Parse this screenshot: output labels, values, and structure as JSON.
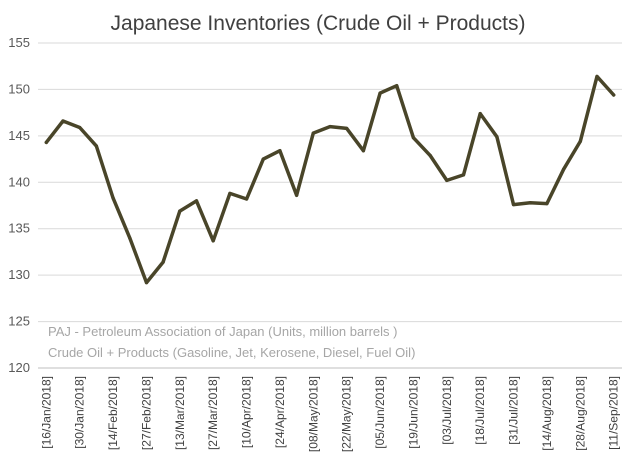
{
  "chart_data": {
    "type": "line",
    "title": "Japanese Inventories (Crude Oil + Products)",
    "xlabel": "",
    "ylabel": "",
    "ylim": [
      120,
      155
    ],
    "yticks": [
      120,
      125,
      130,
      135,
      140,
      145,
      150,
      155
    ],
    "grid": true,
    "legend": "none",
    "categories": [
      "2018-01-16",
      "2018-01-23",
      "2018-01-30",
      "2018-02-06",
      "2018-02-14",
      "2018-02-20",
      "2018-02-27",
      "2018-03-06",
      "2018-03-13",
      "2018-03-20",
      "2018-03-27",
      "2018-04-03",
      "2018-04-10",
      "2018-04-17",
      "2018-04-24",
      "2018-05-01",
      "2018-05-08",
      "2018-05-15",
      "2018-05-22",
      "2018-05-29",
      "2018-06-05",
      "2018-06-12",
      "2018-06-19",
      "2018-06-26",
      "2018-07-03",
      "2018-07-10",
      "2018-07-18",
      "2018-07-24",
      "2018-07-31",
      "2018-08-07",
      "2018-08-14",
      "2018-08-21",
      "2018-08-28",
      "2018-09-04",
      "2018-09-11"
    ],
    "x_tick_labels": [
      "[16/Jan/2018]",
      "[30/Jan/2018]",
      "[14/Feb/2018]",
      "[27/Feb/2018]",
      "[13/Mar/2018]",
      "[27/Mar/2018]",
      "[10/Apr/2018]",
      "[24/Apr/2018]",
      "[08/May/2018]",
      "[22/May/2018]",
      "[05/Jun/2018]",
      "[19/Jun/2018]",
      "[03/Jul/2018]",
      "[18/Jul/2018]",
      "[31/Jul/2018]",
      "[14/Aug/2018]",
      "[28/Aug/2018]",
      "[11/Sep/2018]"
    ],
    "series": [
      {
        "color": "#494529",
        "values": [
          144.3,
          146.6,
          145.9,
          143.9,
          138.3,
          134.0,
          129.2,
          131.4,
          136.9,
          138.0,
          133.7,
          138.8,
          138.2,
          142.5,
          143.4,
          138.6,
          145.3,
          146.0,
          145.8,
          143.4,
          149.6,
          150.4,
          144.8,
          142.9,
          140.2,
          140.8,
          147.4,
          144.9,
          137.6,
          137.8,
          137.7,
          141.4,
          144.4,
          151.4,
          149.4
        ]
      }
    ],
    "annotations": [
      "PAJ - Petroleum Association of Japan  (Units, million barrels )",
      "Crude Oil + Products (Gasoline, Jet, Kerosene, Diesel, Fuel Oil)"
    ]
  }
}
